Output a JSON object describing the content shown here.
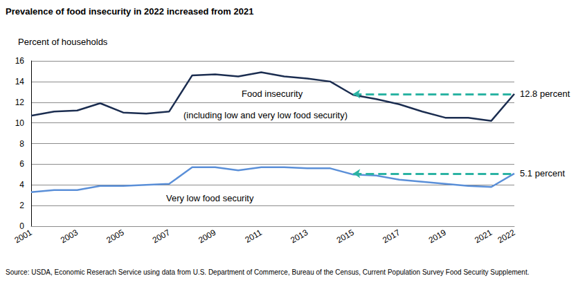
{
  "chart_data": {
    "type": "line",
    "title": "Prevalence of food insecurity in 2022 increased from 2021",
    "y_label": "Percent of households",
    "source": "Source: USDA, Economic Reserach Service using data from U.S. Department of Commerce, Bureau of the Census, Current Population Survey Food Security Supplement.",
    "categories": [
      "2001",
      null,
      "2003",
      null,
      "2005",
      null,
      "2007",
      null,
      "2009",
      null,
      "2011",
      null,
      "2013",
      null,
      "2015",
      null,
      "2017",
      null,
      "2019",
      null,
      "2021",
      "2022"
    ],
    "series": [
      {
        "name": "Food insecurity",
        "note": "(including low and very low food security)",
        "color": "#1b2d50",
        "values": [
          10.7,
          11.1,
          11.2,
          11.9,
          11.0,
          10.9,
          11.1,
          14.6,
          14.7,
          14.5,
          14.9,
          14.5,
          14.3,
          14.0,
          12.7,
          12.3,
          11.8,
          11.1,
          10.5,
          10.5,
          10.2,
          12.8
        ]
      },
      {
        "name": "Very low food security",
        "color": "#5a8fd8",
        "values": [
          3.3,
          3.5,
          3.5,
          3.9,
          3.9,
          4.0,
          4.1,
          5.7,
          5.7,
          5.4,
          5.7,
          5.7,
          5.6,
          5.6,
          5.0,
          4.9,
          4.5,
          4.3,
          4.1,
          3.9,
          3.8,
          5.1
        ]
      }
    ],
    "annotations": [
      {
        "text": "12.8 percent",
        "y": 12.8,
        "color": "#2bb3a3"
      },
      {
        "text": "5.1 percent",
        "y": 5.1,
        "color": "#2bb3a3"
      }
    ],
    "ylim": [
      0,
      16
    ],
    "yticks": [
      0,
      2,
      4,
      6,
      8,
      10,
      12,
      14,
      16
    ],
    "grid": true
  }
}
